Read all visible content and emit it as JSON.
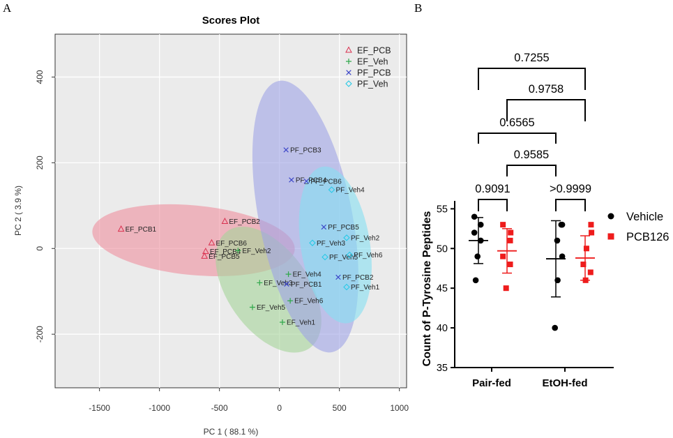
{
  "panel_a_letter": "A",
  "panel_b_letter": "B",
  "colors": {
    "EF_PCB": "#d9304f",
    "EF_Veh": "#2fa84a",
    "PF_PCB": "#3a44c8",
    "PF_Veh": "#1ec8e6",
    "ellipse_EF_PCB": "#ee8f9f",
    "ellipse_EF_Veh": "#a5d39a",
    "ellipse_PF_PCB": "#9ea3e6",
    "ellipse_PF_Veh": "#86e0f2",
    "Vehicle": "#000000",
    "PCB126": "#ee1c1c"
  },
  "chart_data": [
    {
      "type": "scatter",
      "title": "Scores Plot",
      "xlabel": "PC 1 ( 88.1 %)",
      "ylabel": "PC 2 ( 3.9 %)",
      "xlim": [
        -1870,
        1060
      ],
      "ylim": [
        -325,
        500
      ],
      "xticks": [
        -1500,
        -1000,
        -500,
        0,
        500,
        1000
      ],
      "yticks": [
        -200,
        0,
        200,
        400
      ],
      "grid": true,
      "legend_position": "top-right",
      "series": [
        {
          "name": "EF_PCB",
          "marker": "triangle",
          "points": [
            {
              "label": "EF_PCB1",
              "x": -1320,
              "y": 45
            },
            {
              "label": "EF_PCB2",
              "x": -455,
              "y": 63
            },
            {
              "label": "EF_PCB6",
              "x": -565,
              "y": 13
            },
            {
              "label": "EF_PCB4",
              "x": -615,
              "y": -7
            },
            {
              "label": "EF_PCB5",
              "x": -625,
              "y": -18
            }
          ]
        },
        {
          "name": "EF_Veh",
          "marker": "plus",
          "points": [
            {
              "label": "EF_Veh2",
              "x": -345,
              "y": -5
            },
            {
              "label": "EF_Veh4",
              "x": 75,
              "y": -60
            },
            {
              "label": "EF_Veh3",
              "x": -165,
              "y": -80
            },
            {
              "label": "EF_Veh6",
              "x": 90,
              "y": -122
            },
            {
              "label": "EF_Veh5",
              "x": -225,
              "y": -137
            },
            {
              "label": "EF_Veh1",
              "x": 25,
              "y": -172
            }
          ]
        },
        {
          "name": "PF_PCB",
          "marker": "x",
          "points": [
            {
              "label": "PF_PCB3",
              "x": 55,
              "y": 230
            },
            {
              "label": "PF_PCB4",
              "x": 100,
              "y": 160
            },
            {
              "label": "PF_PCB6",
              "x": 225,
              "y": 157
            },
            {
              "label": "PF_PCB5",
              "x": 370,
              "y": 50
            },
            {
              "label": "PF_PCB1",
              "x": 60,
              "y": -83
            },
            {
              "label": "PF_PCB2",
              "x": 490,
              "y": -67
            }
          ]
        },
        {
          "name": "PF_Veh",
          "marker": "diamond",
          "points": [
            {
              "label": "PF_Veh4",
              "x": 435,
              "y": 137
            },
            {
              "label": "PF_Veh2",
              "x": 560,
              "y": 25
            },
            {
              "label": "PF_Veh3",
              "x": 275,
              "y": 13
            },
            {
              "label": "PF_Veh5",
              "x": 380,
              "y": -20
            },
            {
              "label": "PF_Veh6",
              "x": 585,
              "y": -15
            },
            {
              "label": "PF_Veh1",
              "x": 560,
              "y": -90
            }
          ]
        }
      ]
    },
    {
      "type": "scatter",
      "ylabel": "Count of P-Tyrosine Peptides",
      "ylim": [
        35,
        56
      ],
      "yticks": [
        35,
        40,
        45,
        50,
        55
      ],
      "categories": [
        "Pair-fed",
        "EtOH-fed"
      ],
      "legend_position": "right",
      "series": [
        {
          "name": "Vehicle",
          "marker": "circle",
          "groups": [
            {
              "category": "Pair-fed",
              "values": [
                54,
                53,
                52,
                51,
                49,
                46
              ],
              "mean": 51.0,
              "sd_low": 48.1,
              "sd_high": 53.9
            },
            {
              "category": "EtOH-fed",
              "values": [
                53,
                53,
                51,
                49,
                46,
                40
              ],
              "mean": 48.7,
              "sd_low": 43.9,
              "sd_high": 53.5
            }
          ]
        },
        {
          "name": "PCB126",
          "marker": "square",
          "groups": [
            {
              "category": "Pair-fed",
              "values": [
                53,
                52,
                51,
                49,
                48,
                45
              ],
              "mean": 49.7,
              "sd_low": 46.9,
              "sd_high": 52.5
            },
            {
              "category": "EtOH-fed",
              "values": [
                53,
                52,
                50,
                48,
                47,
                46
              ],
              "mean": 48.8,
              "sd_low": 46.0,
              "sd_high": 51.6
            }
          ]
        }
      ],
      "comparisons": [
        {
          "p": "0.7255",
          "from": "Pair-fed Vehicle",
          "to": "EtOH-fed PCB126"
        },
        {
          "p": "0.9758",
          "from": "Pair-fed PCB126",
          "to": "EtOH-fed PCB126"
        },
        {
          "p": "0.6565",
          "from": "Pair-fed Vehicle",
          "to": "EtOH-fed Vehicle"
        },
        {
          "p": "0.9585",
          "from": "Pair-fed PCB126",
          "to": "EtOH-fed Vehicle"
        },
        {
          "p": "0.9091",
          "from": "Pair-fed Vehicle",
          "to": "Pair-fed PCB126"
        },
        {
          "p": ">0.9999",
          "from": "EtOH-fed Vehicle",
          "to": "EtOH-fed PCB126"
        }
      ]
    }
  ]
}
